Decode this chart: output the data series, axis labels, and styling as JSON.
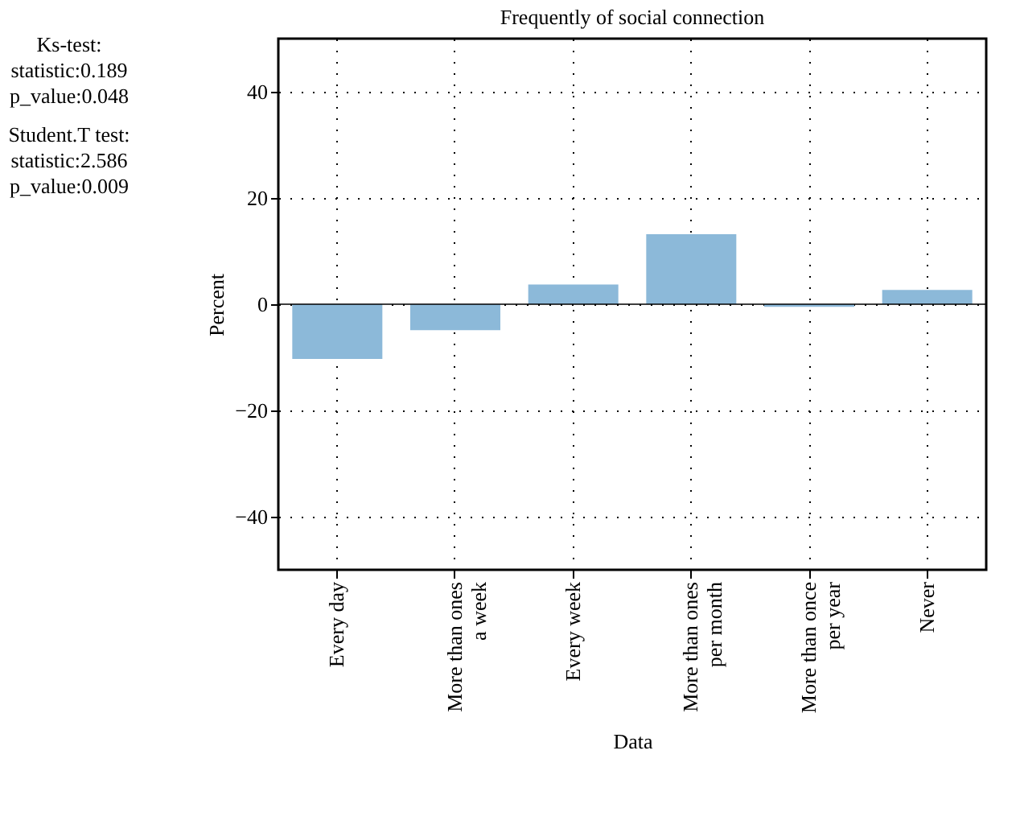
{
  "chart_data": {
    "type": "bar",
    "title": "Frequently of social connection",
    "xlabel": "Data",
    "ylabel": "Percent",
    "categories": [
      "Every day",
      "More than ones a week",
      "Every week",
      "More than ones per month",
      "More than once per year",
      "Never"
    ],
    "values": [
      -10.3,
      -4.9,
      3.7,
      13.2,
      -0.5,
      2.7
    ],
    "color": "#8cb9d9",
    "ylim": [
      -50,
      50
    ],
    "yticks": [
      -40,
      -20,
      0,
      20,
      40
    ],
    "grid": true,
    "ref_lines": [
      {
        "axis": "y",
        "value": 0,
        "color": "#000000"
      }
    ],
    "annotations": [
      "Ks-test:",
      "statistic:0.189",
      "p_value:0.048",
      "Student.T test:",
      "statistic:2.586",
      "p_value:0.009"
    ]
  }
}
